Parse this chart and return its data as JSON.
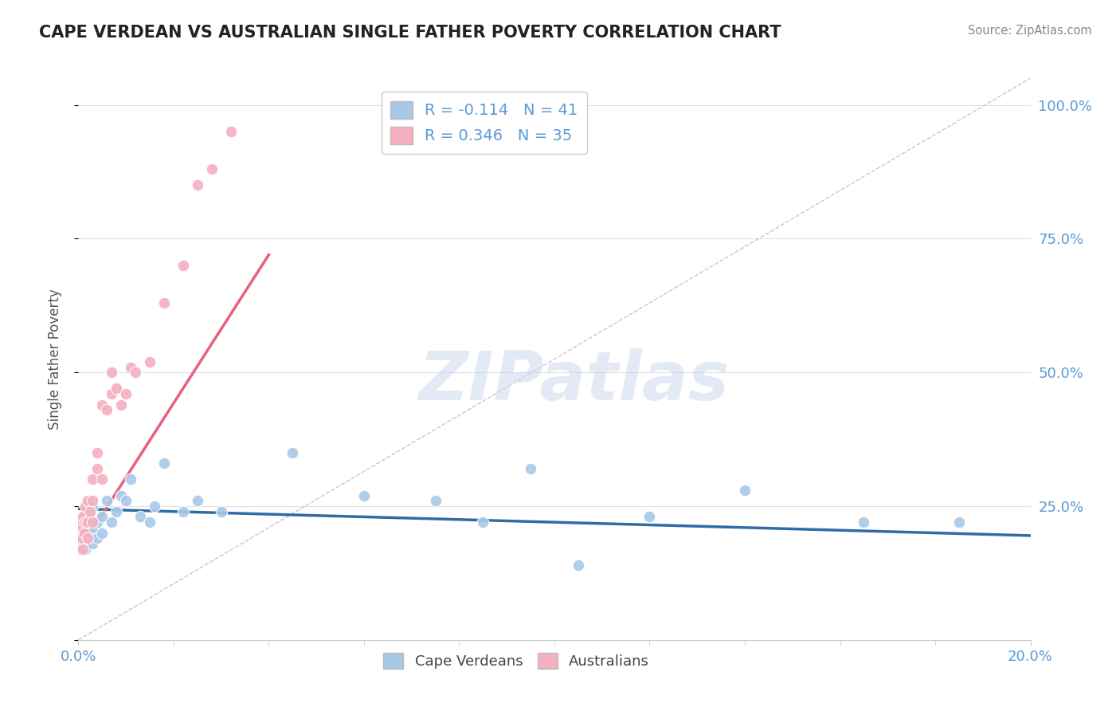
{
  "title": "CAPE VERDEAN VS AUSTRALIAN SINGLE FATHER POVERTY CORRELATION CHART",
  "source": "Source: ZipAtlas.com",
  "ylabel": "Single Father Poverty",
  "xlim": [
    0.0,
    0.2
  ],
  "ylim": [
    0.0,
    1.05
  ],
  "ytick_positions": [
    0.0,
    0.25,
    0.5,
    0.75,
    1.0
  ],
  "ytick_labels_right": [
    "",
    "25.0%",
    "50.0%",
    "75.0%",
    "100.0%"
  ],
  "legend_top": [
    {
      "label": "R = -0.114   N = 41",
      "color": "#a8c8e8"
    },
    {
      "label": "R = 0.346   N = 35",
      "color": "#f4b0c0"
    }
  ],
  "legend_bottom": [
    {
      "label": "Cape Verdeans",
      "color": "#a8c8e8"
    },
    {
      "label": "Australians",
      "color": "#f4b0c0"
    }
  ],
  "blue_scatter_x": [
    0.0005,
    0.0008,
    0.001,
    0.001,
    0.0012,
    0.0015,
    0.0015,
    0.002,
    0.002,
    0.002,
    0.0025,
    0.003,
    0.003,
    0.003,
    0.004,
    0.004,
    0.005,
    0.005,
    0.006,
    0.007,
    0.008,
    0.009,
    0.01,
    0.011,
    0.013,
    0.015,
    0.016,
    0.018,
    0.022,
    0.025,
    0.03,
    0.045,
    0.06,
    0.075,
    0.085,
    0.095,
    0.105,
    0.12,
    0.14,
    0.165,
    0.185
  ],
  "blue_scatter_y": [
    0.2,
    0.18,
    0.22,
    0.19,
    0.21,
    0.17,
    0.23,
    0.2,
    0.22,
    0.19,
    0.24,
    0.18,
    0.21,
    0.25,
    0.22,
    0.19,
    0.23,
    0.2,
    0.26,
    0.22,
    0.24,
    0.27,
    0.26,
    0.3,
    0.23,
    0.22,
    0.25,
    0.33,
    0.24,
    0.26,
    0.24,
    0.35,
    0.27,
    0.26,
    0.22,
    0.32,
    0.14,
    0.23,
    0.28,
    0.22,
    0.22
  ],
  "pink_scatter_x": [
    0.0003,
    0.0005,
    0.0005,
    0.0007,
    0.001,
    0.001,
    0.001,
    0.0012,
    0.0015,
    0.0015,
    0.002,
    0.002,
    0.002,
    0.0025,
    0.003,
    0.003,
    0.003,
    0.004,
    0.004,
    0.005,
    0.005,
    0.006,
    0.007,
    0.007,
    0.008,
    0.009,
    0.01,
    0.011,
    0.012,
    0.015,
    0.018,
    0.022,
    0.025,
    0.028,
    0.032
  ],
  "pink_scatter_y": [
    0.17,
    0.2,
    0.22,
    0.19,
    0.17,
    0.21,
    0.23,
    0.2,
    0.22,
    0.25,
    0.19,
    0.22,
    0.26,
    0.24,
    0.26,
    0.3,
    0.22,
    0.32,
    0.35,
    0.3,
    0.44,
    0.43,
    0.46,
    0.5,
    0.47,
    0.44,
    0.46,
    0.51,
    0.5,
    0.52,
    0.63,
    0.7,
    0.85,
    0.88,
    0.95
  ],
  "blue_line_x": [
    0.0,
    0.2
  ],
  "blue_line_y": [
    0.245,
    0.195
  ],
  "pink_line_x": [
    0.0,
    0.04
  ],
  "pink_line_y": [
    0.165,
    0.72
  ],
  "ref_line_x": [
    0.0,
    0.2
  ],
  "ref_line_y": [
    0.0,
    1.05
  ],
  "watermark_text": "ZIPatlas",
  "blue_dot_color": "#a8c8e8",
  "pink_dot_color": "#f4b0c0",
  "blue_line_color": "#2e6da4",
  "pink_line_color": "#e8607a",
  "ref_line_color": "#d8c0c8",
  "grid_color": "#e0e0e0",
  "right_axis_color": "#5b9bd5",
  "title_color": "#222222",
  "bg_color": "#ffffff"
}
